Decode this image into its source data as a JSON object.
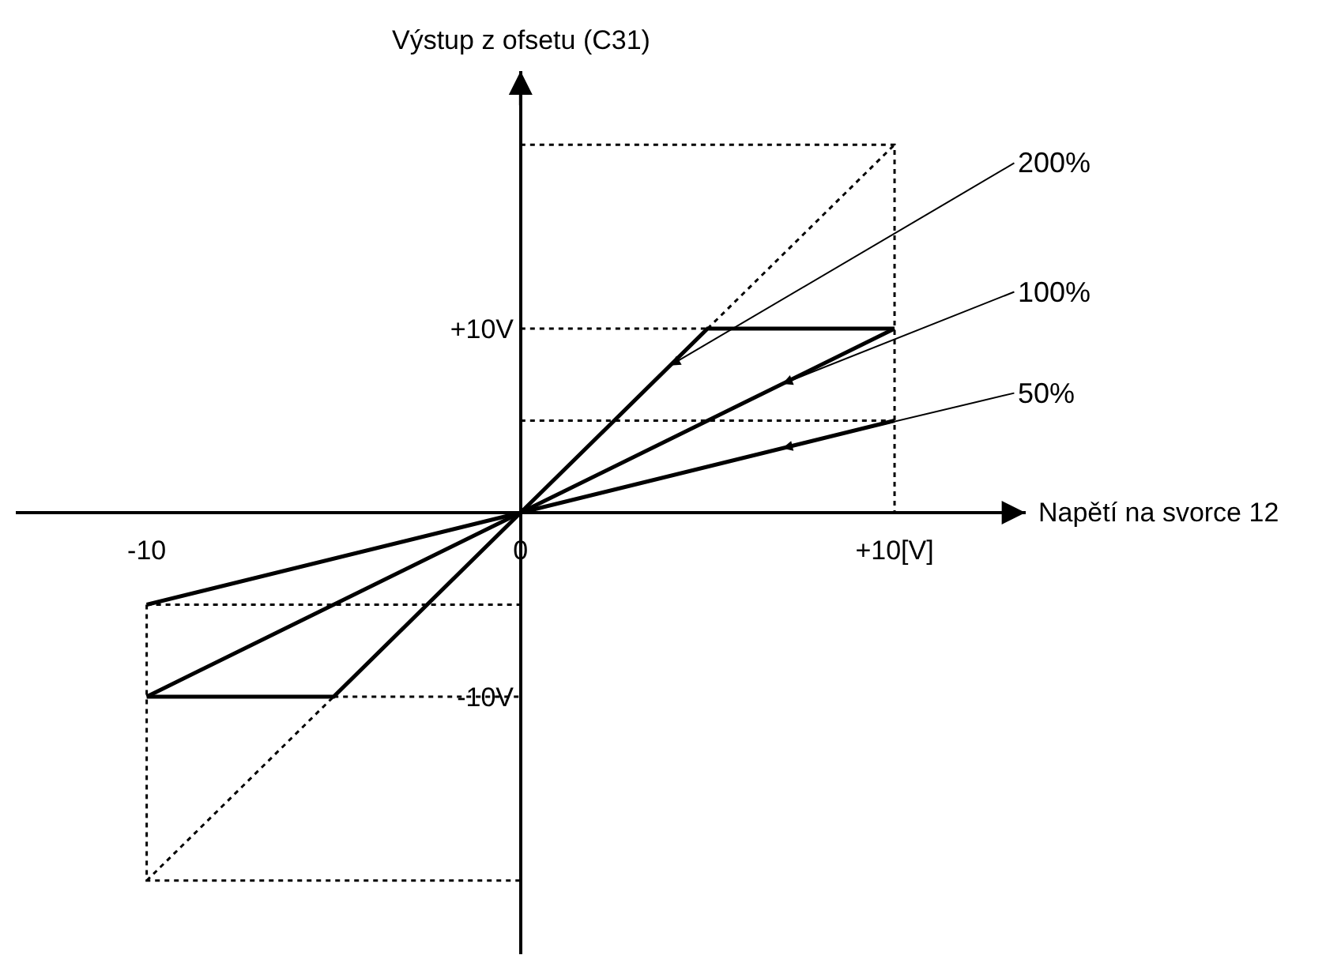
{
  "chart_data": {
    "type": "line",
    "xlabel": "Napětí na svorce 12",
    "ylabel": "Výstup z ofsetu (C31)",
    "xlim": [
      -13.5,
      13.5
    ],
    "ylim": [
      -24,
      24
    ],
    "xticks": [
      -10,
      0,
      {
        "value": 10,
        "label": "+10[V]"
      }
    ],
    "yticks": [
      {
        "value": 10,
        "label": "+10V"
      },
      {
        "value": -10,
        "label": "-10V"
      }
    ],
    "series": [
      {
        "name": "200%",
        "color": "#000000",
        "line_style": "dotted",
        "x": [
          -10,
          10
        ],
        "values": [
          -20,
          20
        ]
      },
      {
        "color": "#000000",
        "line_style": "solid",
        "x": [
          -10,
          -5,
          0,
          5,
          10
        ],
        "values": [
          -10,
          -10,
          0,
          10,
          10
        ]
      },
      {
        "name": "100%",
        "color": "#000000",
        "line_style": "solid",
        "x": [
          -10,
          0,
          10
        ],
        "values": [
          -10,
          0,
          10
        ]
      },
      {
        "name": "50%",
        "color": "#000000",
        "line_style": "solid",
        "x": [
          -10,
          0,
          10
        ],
        "values": [
          -5,
          0,
          5
        ]
      },
      {
        "color": "#000000",
        "line_style": "dotted",
        "x": [
          0,
          10,
          10,
          null,
          0,
          5,
          null,
          0,
          10,
          null,
          -10,
          0,
          null,
          -10,
          -10,
          0,
          null,
          -5,
          0
        ],
        "values": [
          20,
          20,
          0,
          null,
          10,
          10,
          null,
          5,
          5,
          null,
          -5,
          -5,
          null,
          -5,
          -20,
          -20,
          null,
          -10,
          -10
        ]
      }
    ],
    "legend": false,
    "marker": "none"
  }
}
